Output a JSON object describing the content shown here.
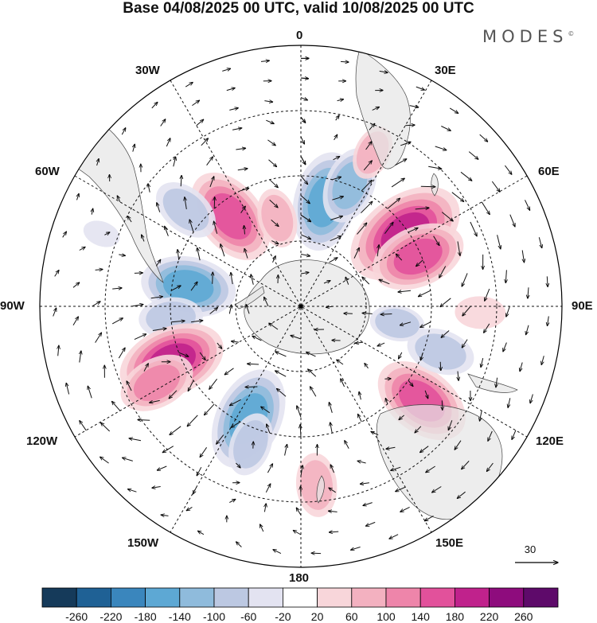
{
  "title": "Base 04/08/2025 00 UTC, valid 10/08/2025 00 UTC",
  "brand": "MODES",
  "brand_mark": "©",
  "longitude_labels": {
    "n0": "0",
    "n30e": "30E",
    "n60e": "60E",
    "n90e": "90E",
    "n120e": "120E",
    "n150e": "150E",
    "n180": "180",
    "n150w": "150W",
    "n120w": "120W",
    "n90w": "90W",
    "n60w": "60W",
    "n30w": "30W"
  },
  "vector_reference": "30",
  "colorbar": {
    "labels": [
      "-260",
      "-220",
      "-180",
      "-140",
      "-100",
      "-60",
      "-20",
      "20",
      "60",
      "100",
      "140",
      "180",
      "220",
      "260"
    ],
    "colors": [
      "#153a5a",
      "#1f6195",
      "#3a86bd",
      "#5da8d4",
      "#8fbbdc",
      "#bcc8e2",
      "#e3e3f1",
      "#ffffff",
      "#f8d6da",
      "#f3b1c0",
      "#ee85aa",
      "#e2519b",
      "#c0228c",
      "#8e0c7d",
      "#5e0a6a"
    ]
  },
  "anomalies": [
    {
      "lat": -51,
      "lon": 55,
      "value": 210
    },
    {
      "lat": -51,
      "lon": 67,
      "value": 150
    },
    {
      "lat": -57,
      "lon": 13,
      "value": -160
    },
    {
      "lat": -50,
      "lon": 22,
      "value": -110
    },
    {
      "lat": -55,
      "lon": -38,
      "value": 160
    },
    {
      "lat": -62,
      "lon": -15,
      "value": 70
    },
    {
      "lat": -44,
      "lon": -50,
      "value": -90
    },
    {
      "lat": -55,
      "lon": -80,
      "value": -150
    },
    {
      "lat": -50,
      "lon": -95,
      "value": -80
    },
    {
      "lat": -47,
      "lon": -113,
      "value": 180
    },
    {
      "lat": -40,
      "lon": -118,
      "value": 110
    },
    {
      "lat": -52,
      "lon": -155,
      "value": -170
    },
    {
      "lat": -45,
      "lon": -160,
      "value": -80
    },
    {
      "lat": -43,
      "lon": 128,
      "value": 160
    },
    {
      "lat": -45,
      "lon": 108,
      "value": -90
    },
    {
      "lat": -35,
      "lon": 175,
      "value": 80
    },
    {
      "lat": -38,
      "lon": 25,
      "value": 60
    },
    {
      "lat": -25,
      "lon": -70,
      "value": -20
    },
    {
      "lat": -35,
      "lon": 92,
      "value": 50
    },
    {
      "lat": -60,
      "lon": 100,
      "value": -60
    }
  ]
}
